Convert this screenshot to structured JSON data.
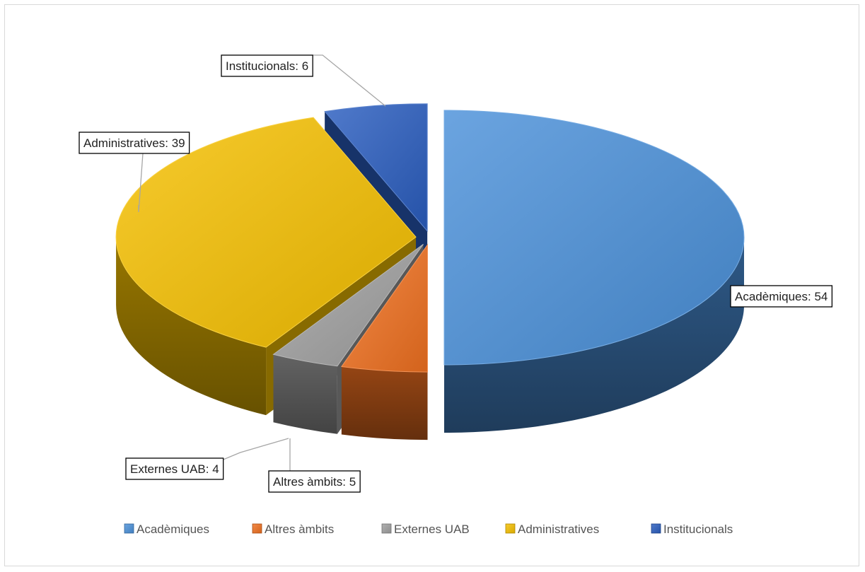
{
  "chart_data": {
    "type": "pie",
    "variant": "3d-exploded",
    "title": "",
    "categories": [
      "Acadèmiques",
      "Altres àmbits",
      "Externes UAB",
      "Administratives",
      "Institucionals"
    ],
    "values": [
      54,
      5,
      4,
      39,
      6
    ],
    "colors": [
      "#4A90D9",
      "#F07020",
      "#A0A0A0",
      "#F5C000",
      "#2A5DBF"
    ],
    "data_labels": [
      "Acadèmiques: 54",
      "Altres àmbits:  5",
      "Externes UAB: 4",
      "Administratives: 39",
      "Institucionals:  6"
    ],
    "legend": {
      "position": "bottom",
      "entries": [
        "Acadèmiques",
        "Altres àmbits",
        "Externes UAB",
        "Administratives",
        "Institucionals"
      ]
    }
  }
}
